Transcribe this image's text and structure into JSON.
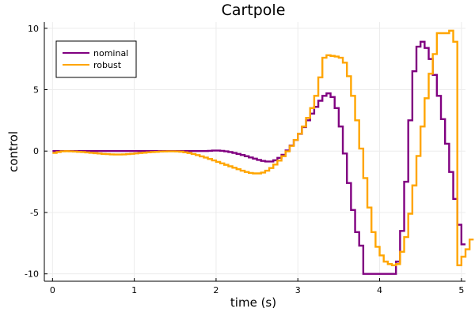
{
  "chart_data": {
    "type": "line",
    "title": "Cartpole",
    "xlabel": "time (s)",
    "ylabel": "control",
    "xlim": [
      -0.1,
      5.05
    ],
    "ylim": [
      -10.6,
      10.5
    ],
    "xticks": [
      0,
      1,
      2,
      3,
      4,
      5
    ],
    "yticks": [
      10,
      5,
      0,
      -5,
      -10
    ],
    "xtick_labels": [
      "0",
      "1",
      "2",
      "3",
      "4",
      "5"
    ],
    "ytick_labels": [
      "10",
      "5",
      "0",
      "-5",
      "-10"
    ],
    "grid": true,
    "legend_position": "top-left",
    "step": "post",
    "dt": 0.05,
    "series": [
      {
        "name": "nominal",
        "color": "#800080",
        "values": [
          0.0,
          0.0,
          0.0,
          0.0,
          0.0,
          0.0,
          0.0,
          0.0,
          0.0,
          0.0,
          0.0,
          0.0,
          0.0,
          0.0,
          0.0,
          0.0,
          0.0,
          0.0,
          0.0,
          0.0,
          0.0,
          0.0,
          0.0,
          0.0,
          0.0,
          0.0,
          0.0,
          0.0,
          0.0,
          0.0,
          0.0,
          0.0,
          0.0,
          0.0,
          0.0,
          0.0,
          0.0,
          0.0,
          0.02,
          0.04,
          0.04,
          0.02,
          -0.02,
          -0.08,
          -0.15,
          -0.23,
          -0.32,
          -0.42,
          -0.52,
          -0.62,
          -0.72,
          -0.8,
          -0.85,
          -0.85,
          -0.75,
          -0.55,
          -0.3,
          0.05,
          0.45,
          0.9,
          1.4,
          1.95,
          2.5,
          3.05,
          3.6,
          4.1,
          4.5,
          4.7,
          4.4,
          3.5,
          2.0,
          -0.2,
          -2.6,
          -4.8,
          -6.6,
          -7.7,
          -10.0,
          -10.0,
          -10.0,
          -10.0,
          -10.0,
          -10.0,
          -10.0,
          -10.0,
          -9.0,
          -6.5,
          -2.5,
          2.5,
          6.5,
          8.5,
          8.9,
          8.4,
          7.5,
          6.2,
          4.5,
          2.6,
          0.6,
          -1.7,
          -3.9,
          -6.0,
          -7.6
        ]
      },
      {
        "name": "robust",
        "color": "#FFA500",
        "values": [
          -0.15,
          -0.08,
          -0.02,
          -0.01,
          -0.02,
          -0.04,
          -0.06,
          -0.08,
          -0.11,
          -0.14,
          -0.17,
          -0.2,
          -0.23,
          -0.25,
          -0.27,
          -0.28,
          -0.28,
          -0.27,
          -0.25,
          -0.22,
          -0.19,
          -0.16,
          -0.13,
          -0.1,
          -0.08,
          -0.06,
          -0.04,
          -0.03,
          -0.02,
          -0.02,
          -0.03,
          -0.05,
          -0.1,
          -0.16,
          -0.24,
          -0.33,
          -0.43,
          -0.53,
          -0.64,
          -0.76,
          -0.88,
          -1.0,
          -1.12,
          -1.24,
          -1.36,
          -1.48,
          -1.6,
          -1.7,
          -1.78,
          -1.82,
          -1.82,
          -1.75,
          -1.6,
          -1.38,
          -1.1,
          -0.78,
          -0.42,
          -0.02,
          0.42,
          0.9,
          1.42,
          2.0,
          2.7,
          3.5,
          4.5,
          6.0,
          7.6,
          7.8,
          7.75,
          7.7,
          7.6,
          7.2,
          6.1,
          4.5,
          2.5,
          0.2,
          -2.2,
          -4.6,
          -6.6,
          -7.8,
          -8.5,
          -9.0,
          -9.2,
          -9.3,
          -9.2,
          -8.2,
          -7.0,
          -5.1,
          -2.8,
          -0.4,
          2.0,
          4.3,
          6.3,
          7.9,
          9.6,
          9.6,
          9.6,
          9.8,
          8.9,
          -9.3,
          -8.6,
          -8.0,
          -7.2
        ]
      }
    ]
  }
}
